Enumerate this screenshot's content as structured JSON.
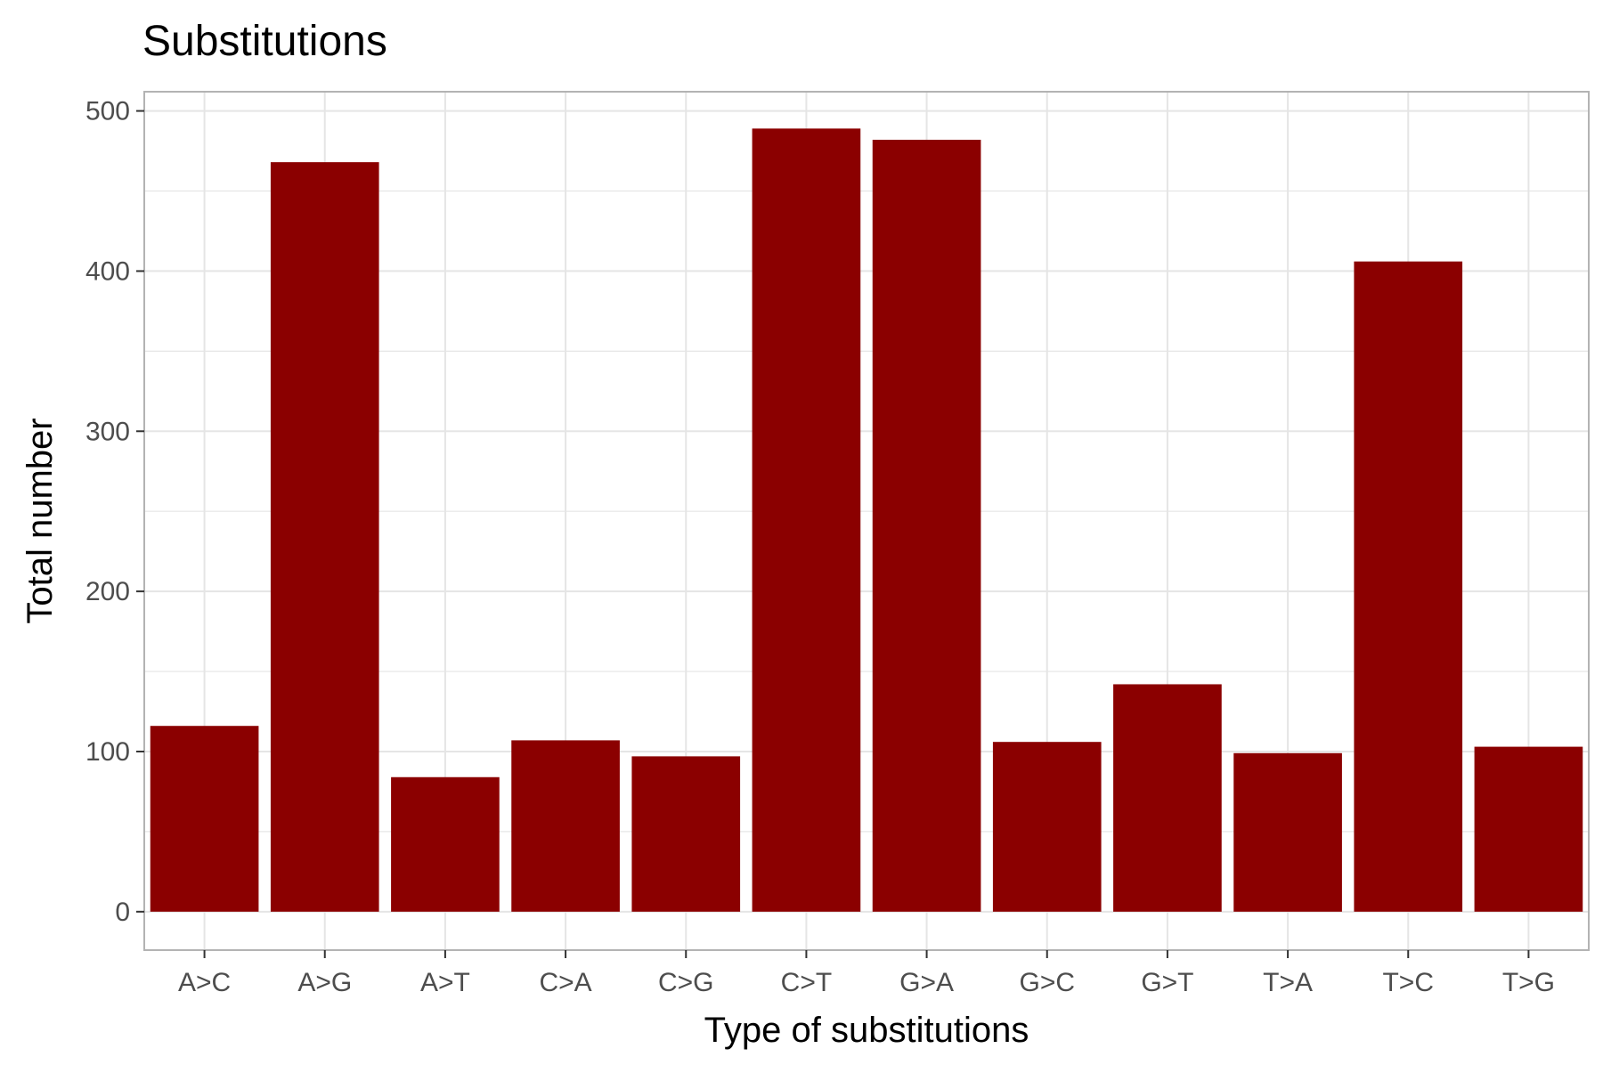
{
  "chart_data": {
    "type": "bar",
    "title": "Substitutions",
    "xlabel": "Type of substitutions",
    "ylabel": "Total number",
    "categories": [
      "A>C",
      "A>G",
      "A>T",
      "C>A",
      "C>G",
      "C>T",
      "G>A",
      "G>C",
      "G>T",
      "T>A",
      "T>C",
      "T>G"
    ],
    "values": [
      116,
      468,
      84,
      107,
      97,
      489,
      482,
      106,
      142,
      99,
      406,
      103
    ],
    "ylim": [
      -24,
      512
    ],
    "yticks": [
      0,
      100,
      200,
      300,
      400,
      500
    ],
    "ytick_labels": [
      "0",
      "100",
      "200",
      "300",
      "400",
      "500"
    ],
    "grid": true,
    "bar_color": "#8b0000",
    "gridline_color": "#e5e5e5",
    "panel_border_color": "#b3b3b3"
  }
}
